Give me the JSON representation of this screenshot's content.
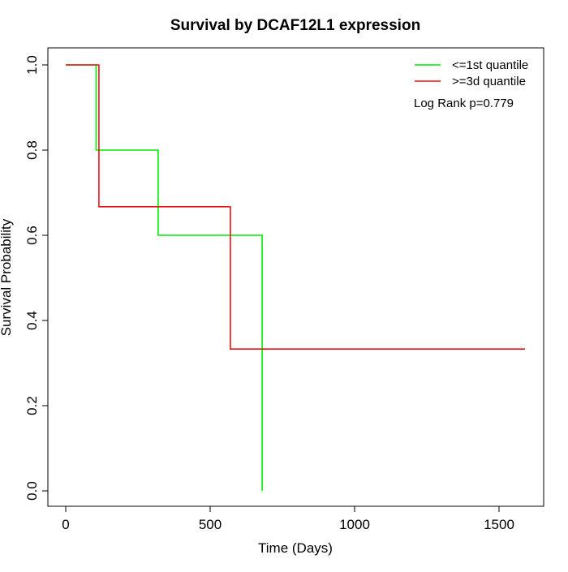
{
  "chart_data": {
    "type": "line",
    "title": "Survival by DCAF12L1 expression",
    "xlabel": "Time (Days)",
    "ylabel": "Survival Probability",
    "xlim": [
      0,
      1650
    ],
    "ylim": [
      -0.04,
      1.04
    ],
    "x_ticks": [
      0,
      500,
      1000,
      1500
    ],
    "x_tick_labels": [
      "0",
      "500",
      "1000",
      "1500"
    ],
    "y_ticks": [
      0.0,
      0.2,
      0.4,
      0.6,
      0.8,
      1.0
    ],
    "y_tick_labels": [
      "0.0",
      "0.2",
      "0.4",
      "0.6",
      "0.8",
      "1.0"
    ],
    "grid": false,
    "legend_position": "top-right",
    "annotation": "Log Rank p=0.779",
    "series": [
      {
        "name": "<=1st quantile",
        "color": "#00ee00",
        "step": true,
        "x": [
          0,
          105,
          105,
          320,
          320,
          680,
          680
        ],
        "y": [
          1.0,
          1.0,
          0.8,
          0.8,
          0.6,
          0.6,
          0.0
        ]
      },
      {
        "name": ">=3d quantile",
        "color": "#ee1111",
        "step": true,
        "x": [
          0,
          115,
          115,
          570,
          570,
          1590
        ],
        "y": [
          1.0,
          1.0,
          0.667,
          0.667,
          0.333,
          0.333
        ]
      }
    ]
  }
}
